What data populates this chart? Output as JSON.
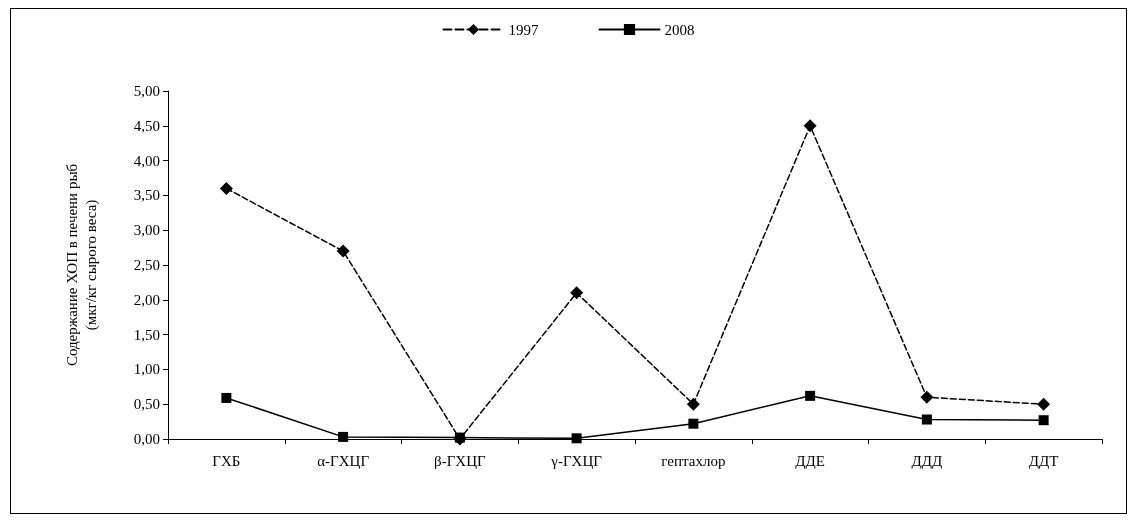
{
  "chart_data": {
    "type": "line",
    "ylabel": "Содержание ХОП в печени рыб\n(мкг/кг сырого веса)",
    "categories": [
      "ГХБ",
      "α-ГХЦГ",
      "β-ГХЦГ",
      "γ-ГХЦГ",
      "гептахлор",
      "ДДЕ",
      "ДДД",
      "ДДТ"
    ],
    "series": [
      {
        "name": "1997",
        "color": "#000000",
        "marker": "diamond",
        "line_style": "dashed",
        "values": [
          3.6,
          2.7,
          0.0,
          2.1,
          0.5,
          4.5,
          0.6,
          0.5
        ]
      },
      {
        "name": "2008",
        "color": "#000000",
        "marker": "square",
        "line_style": "solid",
        "values": [
          0.59,
          0.03,
          0.02,
          0.01,
          0.22,
          0.62,
          0.28,
          0.27
        ]
      }
    ],
    "ylim": [
      0,
      5
    ],
    "yticks": [
      {
        "value": 0,
        "label": "0,00"
      },
      {
        "value": 0.5,
        "label": "0,50"
      },
      {
        "value": 1,
        "label": "1,00"
      },
      {
        "value": 1.5,
        "label": "1,50"
      },
      {
        "value": 2,
        "label": "2,00"
      },
      {
        "value": 2.5,
        "label": "2,50"
      },
      {
        "value": 3,
        "label": "3,00"
      },
      {
        "value": 3.5,
        "label": "3,50"
      },
      {
        "value": 4,
        "label": "4,00"
      },
      {
        "value": 4.5,
        "label": "4,50"
      },
      {
        "value": 5,
        "label": "5,00"
      }
    ],
    "grid": false,
    "legend": "top"
  }
}
